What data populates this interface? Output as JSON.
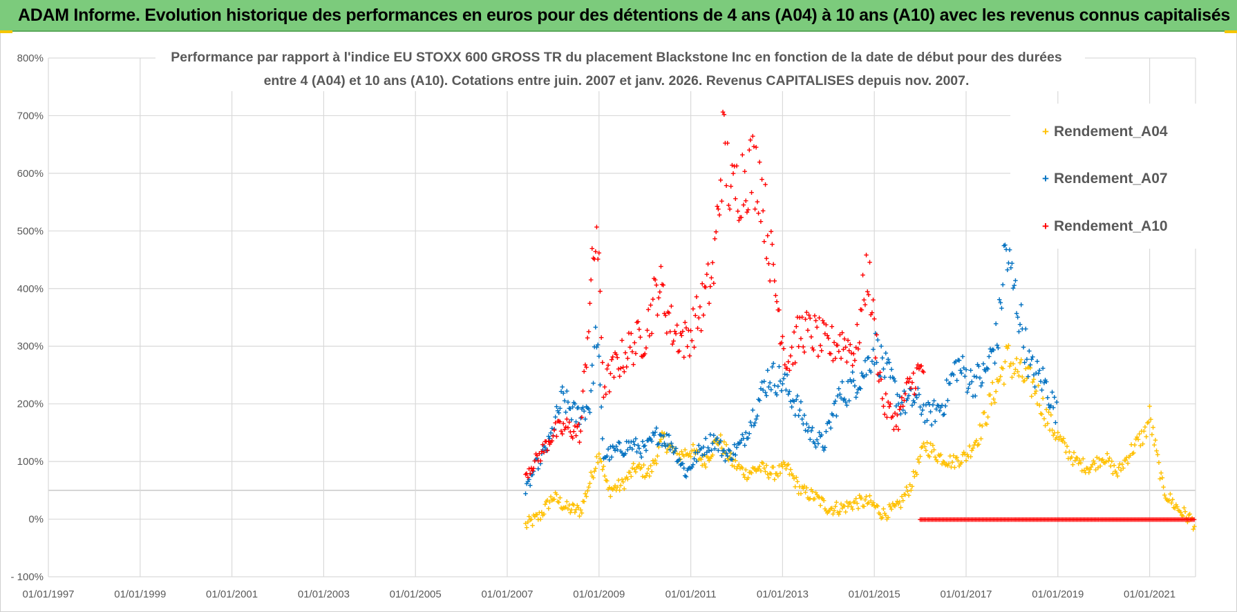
{
  "banner": {
    "title": "ADAM Informe. Evolution historique des performances en euros pour des détentions de 4 ans (A04) à 10 ans (A10) avec les revenus connus capitalisés"
  },
  "colors": {
    "banner_bg": "#7ccb7c",
    "a04": "#ffc000",
    "a07": "#0070c0",
    "a10": "#ff0000",
    "grid": "#d9d9d9",
    "text": "#595959"
  },
  "chart_data": {
    "type": "scatter",
    "title_lines": [
      "Performance par rapport à l'indice EU STOXX 600 GROSS TR  du placement Blackstone Inc en fonction de la date de début pour des durées",
      "entre 4 (A04) et 10 ans (A10). Cotations entre juin. 2007 et janv. 2026. Revenus CAPITALISES depuis nov. 2007."
    ],
    "xlabel": "",
    "ylabel": "",
    "x_range": [
      1997.0,
      2022.0
    ],
    "x_ticks": [
      1997,
      1999,
      2001,
      2003,
      2005,
      2007,
      2009,
      2011,
      2013,
      2015,
      2017,
      2019,
      2021
    ],
    "x_tick_labels": [
      "01/01/1997",
      "01/01/1999",
      "01/01/2001",
      "01/01/2003",
      "01/01/2005",
      "01/01/2007",
      "01/01/2009",
      "01/01/2011",
      "01/01/2013",
      "01/01/2015",
      "01/01/2017",
      "01/01/2019",
      "01/01/2021"
    ],
    "ylim": [
      -100,
      800
    ],
    "y_ticks": [
      -100,
      0,
      100,
      200,
      300,
      400,
      500,
      600,
      700,
      800
    ],
    "y_tick_labels": [
      "- 100%",
      "0%",
      "100%",
      "200%",
      "300%",
      "400%",
      "500%",
      "600%",
      "700%",
      "800%"
    ],
    "grid": true,
    "marker": "+",
    "legend_position": "top-right",
    "series": [
      {
        "name": "Rendement_A04",
        "color": "#ffc000",
        "x": [
          2007.4,
          2007.7,
          2008.0,
          2008.3,
          2008.6,
          2008.9,
          2009.0,
          2009.2,
          2009.5,
          2009.8,
          2010.1,
          2010.4,
          2010.7,
          2011.0,
          2011.3,
          2011.6,
          2011.9,
          2012.2,
          2012.5,
          2012.8,
          2013.1,
          2013.4,
          2013.7,
          2014.0,
          2014.3,
          2014.6,
          2014.9,
          2015.2,
          2015.5,
          2015.8,
          2016.1,
          2016.4,
          2016.7,
          2017.0,
          2017.3,
          2017.6,
          2017.9,
          2018.2,
          2018.5,
          2018.8,
          2019.1,
          2019.4,
          2019.7,
          2020.0,
          2020.3,
          2020.6,
          2020.9,
          2021.0,
          2021.3,
          2021.6,
          2021.9,
          2022.0
        ],
        "values": [
          -10,
          5,
          40,
          20,
          15,
          90,
          120,
          50,
          60,
          90,
          80,
          140,
          110,
          120,
          100,
          140,
          100,
          80,
          90,
          80,
          90,
          50,
          40,
          20,
          20,
          30,
          30,
          10,
          20,
          60,
          130,
          110,
          100,
          110,
          150,
          220,
          280,
          250,
          230,
          170,
          130,
          100,
          90,
          110,
          80,
          120,
          150,
          180,
          50,
          20,
          0,
          -10
        ]
      },
      {
        "name": "Rendement_A07",
        "color": "#0070c0",
        "x": [
          2007.4,
          2007.6,
          2007.9,
          2008.2,
          2008.5,
          2008.8,
          2008.95,
          2009.1,
          2009.4,
          2009.7,
          2010.0,
          2010.3,
          2010.6,
          2010.9,
          2011.2,
          2011.5,
          2011.8,
          2012.1,
          2012.4,
          2012.7,
          2013.0,
          2013.3,
          2013.6,
          2013.9,
          2014.2,
          2014.5,
          2014.8,
          2015.0,
          2015.3,
          2015.6,
          2015.9,
          2016.2,
          2016.5,
          2016.8,
          2017.1,
          2017.4,
          2017.7,
          2017.85,
          2018.1,
          2018.4,
          2018.7,
          2019.0
        ],
        "values": [
          45,
          90,
          130,
          210,
          180,
          200,
          330,
          110,
          120,
          130,
          120,
          150,
          130,
          80,
          120,
          140,
          110,
          130,
          190,
          250,
          240,
          200,
          150,
          130,
          210,
          230,
          260,
          300,
          250,
          200,
          210,
          180,
          200,
          270,
          240,
          250,
          320,
          470,
          380,
          260,
          240,
          180
        ]
      },
      {
        "name": "Rendement_A10",
        "color": "#ff0000",
        "x": [
          2007.4,
          2007.7,
          2008.0,
          2008.3,
          2008.6,
          2008.8,
          2008.95,
          2009.1,
          2009.4,
          2009.7,
          2010.0,
          2010.3,
          2010.6,
          2010.9,
          2011.2,
          2011.5,
          2011.7,
          2011.9,
          2012.1,
          2012.3,
          2012.5,
          2012.7,
          2012.9,
          2013.1,
          2013.4,
          2013.7,
          2014.0,
          2014.3,
          2014.6,
          2014.85,
          2015.0,
          2015.2,
          2015.5,
          2015.7,
          2015.9,
          2016.1
        ],
        "values": [
          80,
          110,
          150,
          160,
          150,
          380,
          510,
          230,
          270,
          300,
          320,
          410,
          330,
          310,
          360,
          430,
          650,
          560,
          590,
          610,
          600,
          480,
          370,
          270,
          330,
          320,
          300,
          310,
          290,
          440,
          330,
          200,
          170,
          220,
          250,
          260
        ]
      },
      {
        "name": "Rendement_A10_zero_segment",
        "color": "#ff0000",
        "x": [
          2016.0,
          2022.0
        ],
        "values": [
          0,
          0
        ]
      }
    ],
    "legend": [
      "Rendement_A04",
      "Rendement_A07",
      "Rendement_A10"
    ]
  }
}
